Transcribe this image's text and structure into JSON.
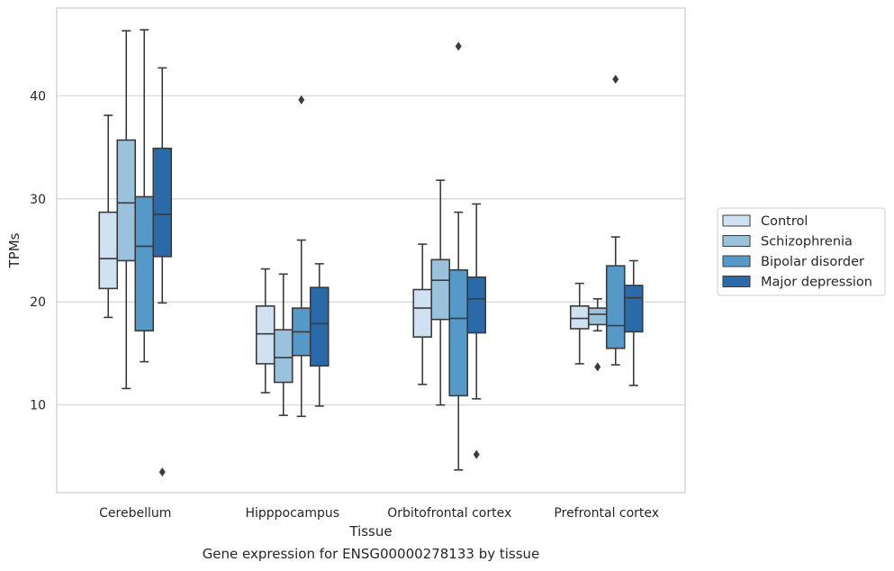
{
  "caption": "Gene expression for ENSG00000278133 by tissue",
  "chart_data": {
    "type": "box",
    "xlabel": "Tissue",
    "ylabel": "TPMs",
    "ylim": [
      1.5,
      48.5
    ],
    "yticks": [
      10,
      20,
      30,
      40
    ],
    "grid": "horizontal",
    "legend_position": "right",
    "categories": [
      "Cerebellum",
      "Hipppocampus",
      "Orbitofrontal cortex",
      "Prefrontal cortex"
    ],
    "series": [
      {
        "name": "Control",
        "color": "#d0e1f2",
        "boxes": [
          {
            "whisker_low": 18.5,
            "q1": 21.3,
            "median": 24.2,
            "q3": 28.7,
            "whisker_high": 38.1,
            "outliers": []
          },
          {
            "whisker_low": 11.2,
            "q1": 14.0,
            "median": 16.9,
            "q3": 19.6,
            "whisker_high": 23.2,
            "outliers": []
          },
          {
            "whisker_low": 12.0,
            "q1": 16.6,
            "median": 19.4,
            "q3": 21.2,
            "whisker_high": 25.6,
            "outliers": []
          },
          {
            "whisker_low": 14.0,
            "q1": 17.4,
            "median": 18.4,
            "q3": 19.6,
            "whisker_high": 21.8,
            "outliers": []
          }
        ]
      },
      {
        "name": "Schizophrenia",
        "color": "#9ac2dc",
        "boxes": [
          {
            "whisker_low": 11.6,
            "q1": 24.0,
            "median": 29.6,
            "q3": 35.7,
            "whisker_high": 46.3,
            "outliers": []
          },
          {
            "whisker_low": 9.0,
            "q1": 12.2,
            "median": 14.6,
            "q3": 17.3,
            "whisker_high": 22.7,
            "outliers": []
          },
          {
            "whisker_low": 10.0,
            "q1": 18.3,
            "median": 22.1,
            "q3": 24.1,
            "whisker_high": 31.8,
            "outliers": []
          },
          {
            "whisker_low": 17.2,
            "q1": 17.8,
            "median": 18.8,
            "q3": 19.4,
            "whisker_high": 20.3,
            "outliers": [
              13.7
            ]
          }
        ]
      },
      {
        "name": "Bipolar disorder",
        "color": "#5599c8",
        "boxes": [
          {
            "whisker_low": 14.2,
            "q1": 17.2,
            "median": 25.4,
            "q3": 30.2,
            "whisker_high": 46.4,
            "outliers": []
          },
          {
            "whisker_low": 8.9,
            "q1": 14.8,
            "median": 17.1,
            "q3": 19.4,
            "whisker_high": 26.0,
            "outliers": [
              39.6
            ]
          },
          {
            "whisker_low": 3.7,
            "q1": 10.9,
            "median": 18.4,
            "q3": 23.1,
            "whisker_high": 28.7,
            "outliers": [
              44.8
            ]
          },
          {
            "whisker_low": 13.9,
            "q1": 15.5,
            "median": 17.7,
            "q3": 23.5,
            "whisker_high": 26.3,
            "outliers": [
              41.6
            ]
          }
        ]
      },
      {
        "name": "Major depression",
        "color": "#2a6aa9",
        "boxes": [
          {
            "whisker_low": 19.9,
            "q1": 24.4,
            "median": 28.5,
            "q3": 34.9,
            "whisker_high": 42.7,
            "outliers": [
              3.5
            ]
          },
          {
            "whisker_low": 9.9,
            "q1": 13.8,
            "median": 17.9,
            "q3": 21.4,
            "whisker_high": 23.7,
            "outliers": []
          },
          {
            "whisker_low": 10.6,
            "q1": 17.0,
            "median": 20.3,
            "q3": 22.4,
            "whisker_high": 29.5,
            "outliers": [
              5.2
            ]
          },
          {
            "whisker_low": 11.9,
            "q1": 17.1,
            "median": 20.4,
            "q3": 21.6,
            "whisker_high": 24.0,
            "outliers": []
          }
        ]
      }
    ]
  }
}
